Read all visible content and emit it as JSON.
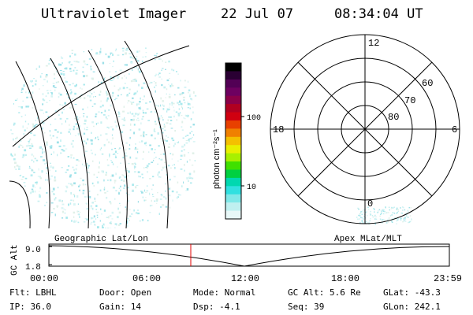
{
  "header": {
    "title": "Ultraviolet Imager",
    "date": "22 Jul 07",
    "time": "08:34:04 UT"
  },
  "colorbar": {
    "unit_label": "photon cm⁻²s⁻¹",
    "ticks": [
      "100",
      "10"
    ],
    "colors": [
      "#000000",
      "#2a0033",
      "#520055",
      "#6e0060",
      "#8b0048",
      "#b00020",
      "#d00010",
      "#e84000",
      "#f08000",
      "#f4c000",
      "#e8f000",
      "#a8f000",
      "#40e000",
      "#00d040",
      "#00d8b0",
      "#30e0e0",
      "#80e8e8",
      "#c0f0f0",
      "#e8f8f8"
    ]
  },
  "polar": {
    "hour_labels": {
      "top": "12",
      "left": "18",
      "right": "6",
      "bottom": "0"
    },
    "lat_labels": [
      "60",
      "70",
      "80"
    ]
  },
  "timeline": {
    "ylabel": "GC Alt",
    "y_ticks": [
      "9.0",
      "1.8"
    ],
    "left_title": "Geographic Lat/Lon",
    "right_title": "Apex MLat/MLT",
    "x_ticks": [
      "00:00",
      "06:00",
      "12:00",
      "18:00",
      "23:59"
    ],
    "marker_color": "#e00000"
  },
  "footer": {
    "filter": "Flt: LBHL",
    "door": "Door: Open",
    "mode": "Mode: Normal",
    "gc_alt": "GC Alt: 5.6 Re",
    "glat": "GLat: -43.3",
    "ip": "IP: 36.0",
    "gain": "Gain: 14",
    "dsp": "Dsp:    -4.1",
    "seq": "Seq: 39",
    "glon": "GLon: 242.1"
  }
}
